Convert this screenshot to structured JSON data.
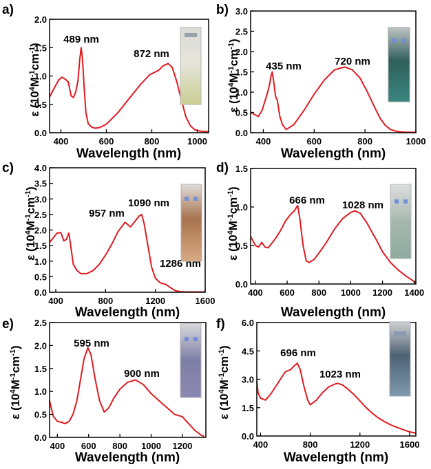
{
  "chart_data": [
    {
      "type": "line",
      "panel_label": "a)",
      "xlabel": "Wavelength (nm)",
      "ylabel": "ε (10⁴M⁻¹cm⁻¹)",
      "xlim": [
        350,
        1050
      ],
      "ylim": [
        0,
        2.0
      ],
      "xticks": [
        400,
        600,
        800,
        1000
      ],
      "yticks": [
        0.0,
        0.5,
        1.0,
        1.5,
        2.0
      ],
      "ytick_labels": [
        "0.0",
        "0.5",
        "1.0",
        "1.5",
        "2.0"
      ],
      "annotations": [
        {
          "text": "489 nm"
        },
        {
          "text": "872 nm"
        }
      ],
      "series": [
        {
          "color": "#e0191f",
          "x": [
            350,
            370,
            390,
            405,
            420,
            432,
            445,
            455,
            465,
            475,
            483,
            489,
            495,
            502,
            510,
            520,
            535,
            550,
            570,
            600,
            650,
            700,
            750,
            790,
            810,
            830,
            850,
            872,
            890,
            910,
            930,
            950,
            970,
            990,
            1010,
            1030,
            1050
          ],
          "y": [
            0.63,
            0.78,
            0.93,
            0.98,
            0.94,
            0.9,
            0.65,
            0.62,
            0.72,
            0.92,
            1.3,
            1.5,
            1.3,
            0.8,
            0.35,
            0.16,
            0.1,
            0.08,
            0.09,
            0.15,
            0.35,
            0.6,
            0.85,
            1.02,
            1.06,
            1.1,
            1.18,
            1.22,
            1.15,
            0.9,
            0.58,
            0.28,
            0.12,
            0.05,
            0.03,
            0.02,
            0.02
          ]
        }
      ]
    },
    {
      "type": "line",
      "panel_label": "b)",
      "xlabel": "Wavelength (nm)",
      "ylabel": "ε (10⁴M⁻¹cm⁻¹)",
      "xlim": [
        350,
        1000
      ],
      "ylim": [
        0,
        3.0
      ],
      "xticks": [
        400,
        600,
        800,
        1000
      ],
      "yticks": [
        0.0,
        0.5,
        1.0,
        1.5,
        2.0,
        2.5,
        3.0
      ],
      "ytick_labels": [
        "0.0",
        "0.5",
        "1.0",
        "1.5",
        "2.0",
        "2.5",
        "3.0"
      ],
      "annotations": [
        {
          "text": "435 nm"
        },
        {
          "text": "720 nm"
        }
      ],
      "series": [
        {
          "color": "#e0191f",
          "x": [
            350,
            365,
            380,
            395,
            405,
            415,
            425,
            430,
            435,
            440,
            448,
            455,
            465,
            475,
            490,
            520,
            560,
            600,
            640,
            680,
            720,
            750,
            780,
            810,
            840,
            860,
            880,
            900,
            920,
            940,
            960,
            980,
            1000
          ],
          "y": [
            0.5,
            0.45,
            0.4,
            0.55,
            0.75,
            0.95,
            1.2,
            1.4,
            1.5,
            1.3,
            0.9,
            0.8,
            0.4,
            0.2,
            0.08,
            0.2,
            0.55,
            0.95,
            1.3,
            1.55,
            1.62,
            1.55,
            1.35,
            1.0,
            0.6,
            0.35,
            0.18,
            0.08,
            0.04,
            0.02,
            0.01,
            0.01,
            0.01
          ]
        }
      ]
    },
    {
      "type": "line",
      "panel_label": "c)",
      "xlabel": "Wavelength (nm)",
      "ylabel": "ε (10⁴M⁻¹cm⁻¹)",
      "xlim": [
        350,
        1600
      ],
      "ylim": [
        0,
        4.0
      ],
      "xticks": [
        400,
        800,
        1200,
        1600
      ],
      "yticks": [
        0.0,
        0.5,
        1.0,
        1.5,
        2.0,
        2.5,
        3.0,
        3.5,
        4.0
      ],
      "ytick_labels": [
        "0.0",
        "0.5",
        "1.0",
        "1.5",
        "2.0",
        "2.5",
        "3.0",
        "3.5",
        "4.0"
      ],
      "annotations": [
        {
          "text": "957 nm"
        },
        {
          "text": "1090 nm"
        },
        {
          "text": "1286 nm"
        }
      ],
      "series": [
        {
          "color": "#e0191f",
          "x": [
            350,
            380,
            410,
            440,
            465,
            485,
            505,
            520,
            540,
            570,
            600,
            650,
            700,
            750,
            800,
            850,
            900,
            957,
            1000,
            1040,
            1070,
            1090,
            1110,
            1140,
            1170,
            1200,
            1240,
            1286,
            1320,
            1360,
            1400,
            1450,
            1500,
            1550,
            1600
          ],
          "y": [
            1.6,
            1.75,
            1.9,
            1.92,
            1.65,
            1.7,
            1.9,
            1.5,
            0.9,
            0.7,
            0.6,
            0.6,
            0.7,
            0.9,
            1.2,
            1.55,
            1.95,
            2.25,
            2.1,
            2.3,
            2.45,
            2.5,
            2.2,
            1.5,
            0.8,
            0.45,
            0.3,
            0.25,
            0.15,
            0.05,
            0.02,
            0.01,
            0.01,
            0.01,
            0.01
          ]
        }
      ]
    },
    {
      "type": "line",
      "panel_label": "d)",
      "xlabel": "Wavelength (nm)",
      "ylabel": "ε (10⁴M⁻¹cm⁻¹)",
      "xlim": [
        370,
        1410
      ],
      "ylim": [
        0,
        1.5
      ],
      "xticks": [
        400,
        600,
        800,
        1000,
        1200,
        1400
      ],
      "yticks": [
        0.0,
        0.5,
        1.0,
        1.5
      ],
      "ytick_labels": [
        "0.0",
        "0.5",
        "1.0",
        "1.5"
      ],
      "annotations": [
        {
          "text": "666 nm"
        },
        {
          "text": "1028 nm"
        }
      ],
      "series": [
        {
          "color": "#e0191f",
          "x": [
            370,
            400,
            420,
            440,
            460,
            480,
            500,
            530,
            560,
            590,
            620,
            645,
            666,
            680,
            700,
            720,
            740,
            770,
            800,
            850,
            900,
            950,
            1000,
            1028,
            1060,
            1100,
            1140,
            1160,
            1200,
            1250,
            1300,
            1350,
            1380,
            1400,
            1410
          ],
          "y": [
            0.62,
            0.5,
            0.48,
            0.54,
            0.48,
            0.47,
            0.52,
            0.6,
            0.7,
            0.82,
            0.9,
            0.95,
            1.02,
            0.85,
            0.5,
            0.3,
            0.28,
            0.32,
            0.4,
            0.55,
            0.72,
            0.85,
            0.93,
            0.95,
            0.92,
            0.8,
            0.65,
            0.58,
            0.42,
            0.28,
            0.18,
            0.1,
            0.06,
            0.03,
            0.02
          ]
        }
      ]
    },
    {
      "type": "line",
      "panel_label": "e)",
      "xlabel": "Wavelength (nm)",
      "ylabel": "ε (10⁴M⁻¹cm⁻¹)",
      "xlim": [
        350,
        1350
      ],
      "ylim": [
        0,
        2.5
      ],
      "xticks": [
        400,
        600,
        800,
        1000,
        1200
      ],
      "yticks": [
        0.0,
        0.5,
        1.0,
        1.5,
        2.0,
        2.5
      ],
      "ytick_labels": [
        "0.0",
        "0.5",
        "1.0",
        "1.5",
        "2.0",
        "2.5"
      ],
      "annotations": [
        {
          "text": "595 nm"
        },
        {
          "text": "900 nm"
        }
      ],
      "series": [
        {
          "color": "#e0191f",
          "x": [
            350,
            360,
            375,
            400,
            425,
            450,
            475,
            500,
            525,
            550,
            570,
            595,
            615,
            640,
            670,
            700,
            730,
            760,
            800,
            850,
            900,
            950,
            1000,
            1050,
            1100,
            1150,
            1200,
            1240,
            1280,
            1320,
            1340
          ],
          "y": [
            0.8,
            0.65,
            0.45,
            0.35,
            0.33,
            0.3,
            0.35,
            0.5,
            0.8,
            1.3,
            1.7,
            1.95,
            1.8,
            1.3,
            0.8,
            0.55,
            0.65,
            0.85,
            1.05,
            1.2,
            1.25,
            1.15,
            0.95,
            0.8,
            0.65,
            0.5,
            0.45,
            0.3,
            0.15,
            0.05,
            0.02
          ]
        }
      ]
    },
    {
      "type": "line",
      "panel_label": "f)",
      "xlabel": "Wavelength (nm)",
      "ylabel": "ε (10⁴M⁻¹cm⁻¹)",
      "xlim": [
        370,
        1650
      ],
      "ylim": [
        0,
        6.0
      ],
      "xticks": [
        400,
        800,
        1200,
        1600
      ],
      "yticks": [
        0.0,
        1.5,
        3.0,
        4.5,
        6.0
      ],
      "ytick_labels": [
        "0.0",
        "1.5",
        "3.0",
        "4.5",
        "6.0"
      ],
      "annotations": [
        {
          "text": "696 nm"
        },
        {
          "text": "1023 nm"
        }
      ],
      "series": [
        {
          "color": "#e0191f",
          "x": [
            370,
            380,
            400,
            440,
            480,
            520,
            560,
            600,
            640,
            670,
            696,
            720,
            750,
            780,
            800,
            850,
            900,
            950,
            1000,
            1023,
            1060,
            1100,
            1150,
            1200,
            1250,
            1300,
            1350,
            1400,
            1450,
            1500,
            1550,
            1600,
            1650
          ],
          "y": [
            2.9,
            2.3,
            2.0,
            1.9,
            2.2,
            2.6,
            3.0,
            3.4,
            3.5,
            3.7,
            3.85,
            3.5,
            2.6,
            1.9,
            1.65,
            1.9,
            2.3,
            2.6,
            2.75,
            2.78,
            2.7,
            2.5,
            2.2,
            1.85,
            1.5,
            1.2,
            0.95,
            0.75,
            0.58,
            0.45,
            0.33,
            0.22,
            0.15
          ]
        }
      ]
    }
  ],
  "colors": {
    "curve": "#e0191f",
    "axis": "#000000"
  }
}
